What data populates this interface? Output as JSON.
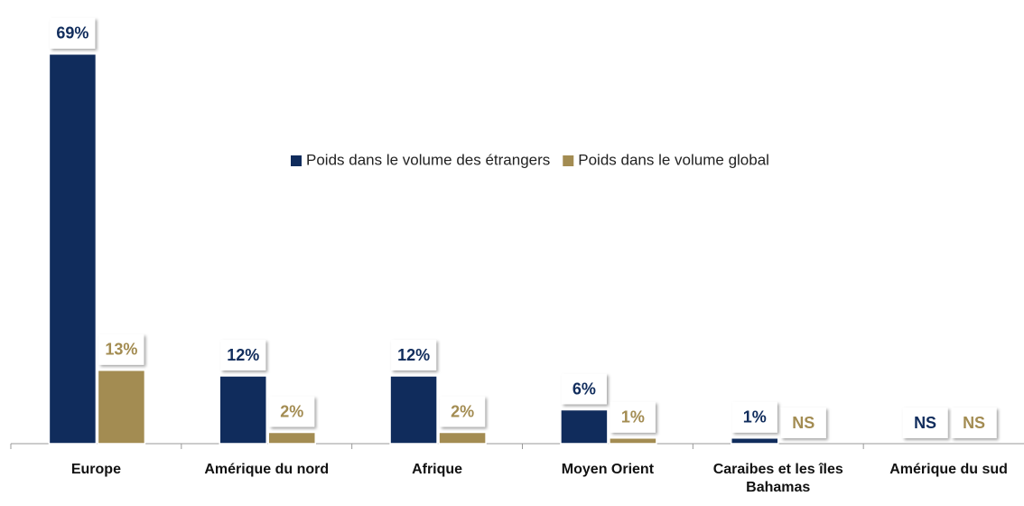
{
  "chart_data": {
    "type": "bar",
    "categories": [
      "Europe",
      "Amérique du nord",
      "Afrique",
      "Moyen Orient",
      "Caraibes et les îles Bahamas",
      "Amérique du sud"
    ],
    "series": [
      {
        "name": "Poids dans le volume des étrangers",
        "color": "#102c5c",
        "values": [
          69,
          12,
          12,
          6,
          1,
          null
        ],
        "value_labels": [
          "69%",
          "12%",
          "12%",
          "6%",
          "1%",
          "NS"
        ]
      },
      {
        "name": "Poids dans le volume global",
        "color": "#a38c52",
        "values": [
          13,
          2,
          2,
          1,
          null,
          null
        ],
        "value_labels": [
          "13%",
          "2%",
          "2%",
          "1%",
          "NS",
          "NS"
        ]
      }
    ],
    "ylim": [
      0,
      70
    ]
  }
}
